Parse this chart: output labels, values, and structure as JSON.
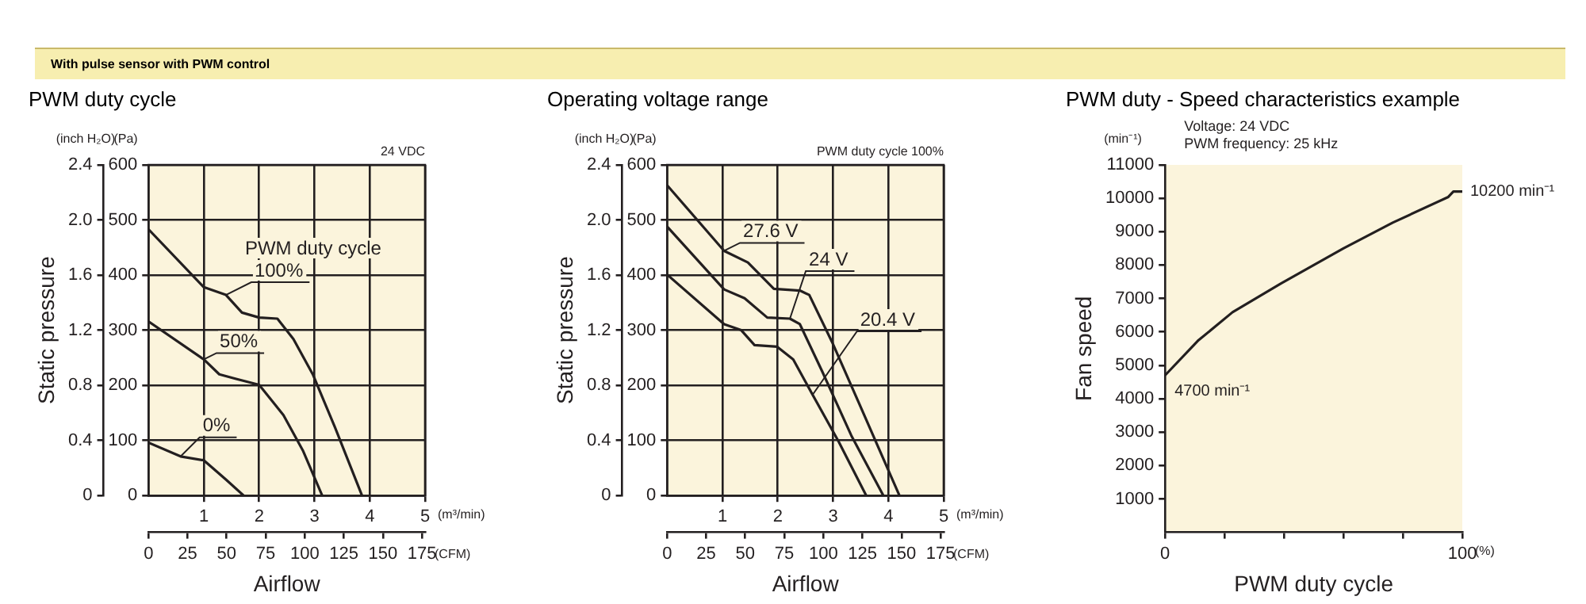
{
  "chart_data": [
    {
      "type": "line",
      "title": "PWM duty cycle",
      "subtitle": "With pulse sensor with PWM control",
      "xlabel": "Airflow",
      "ylabel": "Static pressure",
      "x2label": "(CFM)",
      "y2label": "(Pa)",
      "legend_title": "PWM duty cycle",
      "annotations": [
        "(inch H₂O)",
        "(m³/min)",
        "24 VDC"
      ],
      "series": [
        {
          "name": "100%",
          "color": "#231f20",
          "axis": "y2",
          "x": [
            0,
            1.0,
            1.4,
            1.69,
            2.0,
            2.33,
            2.62,
            2.97,
            3.37,
            3.86
          ],
          "values": [
            483,
            378,
            364,
            332,
            323,
            321,
            284,
            220,
            124,
            0
          ]
        },
        {
          "name": "50%",
          "color": "#231f20",
          "axis": "y2",
          "x": [
            0,
            1.0,
            1.28,
            1.57,
            2.0,
            2.44,
            2.79,
            3.14
          ],
          "values": [
            316,
            247,
            220,
            212,
            201,
            146,
            82,
            0
          ]
        },
        {
          "name": "0%",
          "color": "#231f20",
          "axis": "y2",
          "x": [
            0,
            0.58,
            1.0,
            1.4,
            1.72
          ],
          "values": [
            96,
            71,
            64,
            29,
            0
          ]
        }
      ],
      "xlim": [
        0,
        5
      ],
      "xticks": [
        1,
        2,
        3,
        4,
        5
      ],
      "x2lim": [
        0,
        177
      ],
      "x2ticks": [
        0,
        25,
        50,
        75,
        100,
        125,
        150,
        175
      ],
      "y2lim": [
        0,
        600
      ],
      "y2ticks": [
        0,
        100,
        200,
        300,
        400,
        500,
        600
      ],
      "ylim": [
        0,
        2.4
      ],
      "yticks": [
        0,
        0.4,
        0.8,
        1.2,
        1.6,
        {
          "value": 2,
          "label": "2.0"
        },
        2.4
      ],
      "grid": true
    },
    {
      "type": "line",
      "title": "Operating voltage range",
      "xlabel": "Airflow",
      "ylabel": "Static pressure",
      "x2label": "(CFM)",
      "y2label": "(Pa)",
      "annotations": [
        "(inch H₂O)",
        "(m³/min)",
        "PWM duty cycle 100%"
      ],
      "series": [
        {
          "name": "27.6 V",
          "color": "#231f20",
          "axis": "y2",
          "x": [
            0,
            1.03,
            1.46,
            1.93,
            2.4,
            2.57,
            2.98,
            3.45,
            4.2
          ],
          "values": [
            563,
            444,
            423,
            375,
            372,
            364,
            279,
            172,
            0
          ]
        },
        {
          "name": "24 V",
          "color": "#231f20",
          "axis": "y2",
          "x": [
            0,
            1.03,
            1.4,
            1.81,
            2.22,
            2.4,
            2.8,
            3.33,
            3.91
          ],
          "values": [
            488,
            374,
            358,
            323,
            321,
            311,
            226,
            109,
            0
          ]
        },
        {
          "name": "20.4 V",
          "color": "#231f20",
          "axis": "y2",
          "x": [
            0,
            1.03,
            1.34,
            1.58,
            1.99,
            2.28,
            2.63,
            3.1,
            3.6
          ],
          "values": [
            401,
            311,
            300,
            273,
            270,
            247,
            183,
            98,
            0
          ]
        }
      ],
      "xlim": [
        0,
        5
      ],
      "xticks": [
        1,
        2,
        3,
        4,
        5
      ],
      "x2lim": [
        0,
        177
      ],
      "x2ticks": [
        0,
        25,
        50,
        75,
        100,
        125,
        150,
        175
      ],
      "y2lim": [
        0,
        600
      ],
      "y2ticks": [
        0,
        100,
        200,
        300,
        400,
        500,
        600
      ],
      "ylim": [
        0,
        2.4
      ],
      "yticks": [
        0,
        0.4,
        0.8,
        1.2,
        1.6,
        {
          "value": 2,
          "label": "2.0"
        },
        2.4
      ],
      "grid": true
    },
    {
      "type": "line",
      "title": "PWM duty - Speed characteristics example",
      "xlabel": "PWM duty cycle",
      "ylabel": "Fan speed",
      "annotations": [
        "(min⁻¹)",
        "(%)",
        "Voltage: 24 VDC",
        "PWM frequency: 25 kHz",
        {
          "text": "4700 min⁻¹",
          "x": 0,
          "y": 4700
        },
        {
          "text": "10200 min⁻¹",
          "x": 100,
          "y": 10200
        }
      ],
      "series": [
        {
          "color": "#231f20",
          "x": [
            0,
            11,
            22.7,
            39,
            60,
            76.6,
            95.3,
            97,
            100
          ],
          "values": [
            4700,
            5730,
            6590,
            7450,
            8500,
            9270,
            10040,
            10200,
            10200
          ]
        }
      ],
      "xlim": [
        0,
        100
      ],
      "xticks": [
        0,
        {
          "value": 20,
          "label": null
        },
        {
          "value": 40,
          "label": null
        },
        {
          "value": 60,
          "label": null
        },
        {
          "value": 80,
          "label": null
        },
        100
      ],
      "ylim": [
        0,
        11000
      ],
      "yticks": [
        1000,
        2000,
        3000,
        4000,
        5000,
        6000,
        7000,
        8000,
        9000,
        10000,
        11000
      ]
    }
  ]
}
